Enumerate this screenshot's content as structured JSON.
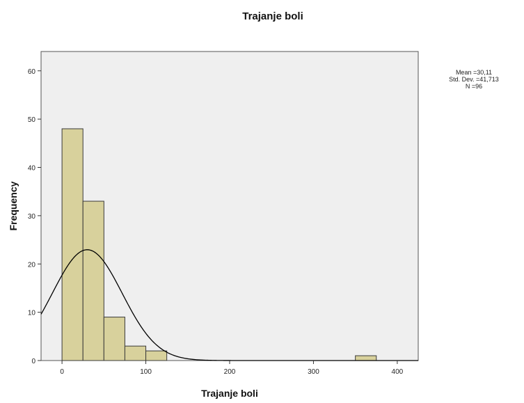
{
  "chart_data": {
    "type": "bar",
    "title": "Trajanje boli",
    "xlabel": "Trajanje boli",
    "ylabel": "Frequency",
    "bin_width": 25,
    "bins": [
      {
        "start": 0,
        "end": 25,
        "count": 48
      },
      {
        "start": 25,
        "end": 50,
        "count": 33
      },
      {
        "start": 50,
        "end": 75,
        "count": 9
      },
      {
        "start": 75,
        "end": 100,
        "count": 3
      },
      {
        "start": 100,
        "end": 125,
        "count": 2
      },
      {
        "start": 350,
        "end": 375,
        "count": 1
      }
    ],
    "xlim": [
      -25,
      425
    ],
    "ylim": [
      0,
      64
    ],
    "x_ticks": [
      0,
      100,
      200,
      300,
      400
    ],
    "y_ticks": [
      0,
      10,
      20,
      30,
      40,
      50,
      60
    ],
    "normal_curve": {
      "mean": 30.11,
      "sd": 41.713,
      "n": 96
    },
    "stats_lines": [
      "Mean =30,11",
      "Std. Dev. =41,713",
      "N =96"
    ],
    "grid": false,
    "legend": "none",
    "colors": {
      "bar_fill": "#d8d19c",
      "bar_stroke": "#3a3a3a",
      "plot_bg": "#efefef",
      "curve": "#000000"
    }
  }
}
